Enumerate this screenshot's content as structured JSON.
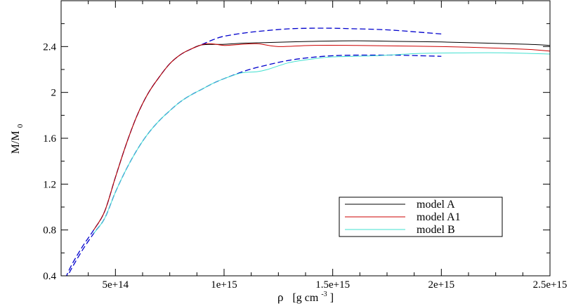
{
  "chart_data": {
    "type": "line",
    "xlabel": "ρ",
    "xlabel_unit": "[g cm",
    "xlabel_unit_exp": "-3",
    "xlabel_unit_close": "]",
    "ylabel": "M/M",
    "ylabel_sub": "0",
    "xlim": [
      250000000000000,
      2500000000000000
    ],
    "ylim": [
      0.4,
      2.8
    ],
    "x_ticks": [
      {
        "value": 500000000000000,
        "label": "5e+14"
      },
      {
        "value": 1000000000000000,
        "label": "1e+15"
      },
      {
        "value": 1500000000000000,
        "label": "1.5e+15"
      },
      {
        "value": 2000000000000000,
        "label": "2e+15"
      },
      {
        "value": 2500000000000000,
        "label": "2.5e+15"
      }
    ],
    "x_minor_ticks": [
      375000000000000,
      625000000000000,
      750000000000000,
      875000000000000,
      1125000000000000,
      1250000000000000,
      1375000000000000,
      1625000000000000,
      1750000000000000,
      1875000000000000,
      2125000000000000,
      2250000000000000,
      2375000000000000
    ],
    "y_ticks": [
      {
        "value": 0.4,
        "label": "0.4"
      },
      {
        "value": 0.8,
        "label": "0.8"
      },
      {
        "value": 1.2,
        "label": "1.2"
      },
      {
        "value": 1.6,
        "label": "1.6"
      },
      {
        "value": 2.0,
        "label": "2"
      },
      {
        "value": 2.4,
        "label": "2.4"
      }
    ],
    "y_minor_ticks": [
      0.6,
      1.0,
      1.4,
      1.8,
      2.2,
      2.6
    ],
    "grid": false,
    "legend_position": "bottom-right",
    "series": [
      {
        "key": "A-upper-dashed",
        "color": "#0000cc",
        "dash": "dashed",
        "width": 1.3,
        "in_legend": false,
        "points": [
          [
            270000000000000,
            0.38
          ],
          [
            300000000000000,
            0.5
          ],
          [
            350000000000000,
            0.66
          ],
          [
            400000000000000,
            0.8
          ],
          [
            450000000000000,
            0.96
          ],
          [
            500000000000000,
            1.26
          ],
          [
            550000000000000,
            1.55
          ],
          [
            600000000000000,
            1.8
          ],
          [
            650000000000000,
            1.99
          ],
          [
            700000000000000,
            2.13
          ],
          [
            750000000000000,
            2.25
          ],
          [
            800000000000000,
            2.33
          ],
          [
            850000000000000,
            2.38
          ],
          [
            900000000000000,
            2.42
          ],
          [
            950000000000000,
            2.46
          ],
          [
            1000000000000000,
            2.49
          ],
          [
            1100000000000000,
            2.52
          ],
          [
            1200000000000000,
            2.54
          ],
          [
            1300000000000000,
            2.555
          ],
          [
            1400000000000000,
            2.56
          ],
          [
            1500000000000000,
            2.56
          ],
          [
            1600000000000000,
            2.555
          ],
          [
            1700000000000000,
            2.55
          ],
          [
            1800000000000000,
            2.54
          ],
          [
            1900000000000000,
            2.525
          ],
          [
            2000000000000000,
            2.51
          ]
        ]
      },
      {
        "key": "B-lower-dashed",
        "color": "#0000cc",
        "dash": "dashed",
        "width": 1.3,
        "in_legend": false,
        "points": [
          [
            270000000000000,
            0.36
          ],
          [
            300000000000000,
            0.47
          ],
          [
            350000000000000,
            0.63
          ],
          [
            400000000000000,
            0.77
          ],
          [
            450000000000000,
            0.9
          ],
          [
            500000000000000,
            1.13
          ],
          [
            550000000000000,
            1.33
          ],
          [
            600000000000000,
            1.5
          ],
          [
            650000000000000,
            1.64
          ],
          [
            700000000000000,
            1.75
          ],
          [
            750000000000000,
            1.84
          ],
          [
            800000000000000,
            1.92
          ],
          [
            850000000000000,
            1.98
          ],
          [
            900000000000000,
            2.03
          ],
          [
            950000000000000,
            2.08
          ],
          [
            1000000000000000,
            2.12
          ],
          [
            1100000000000000,
            2.19
          ],
          [
            1200000000000000,
            2.24
          ],
          [
            1300000000000000,
            2.28
          ],
          [
            1400000000000000,
            2.305
          ],
          [
            1500000000000000,
            2.32
          ],
          [
            1600000000000000,
            2.325
          ],
          [
            1700000000000000,
            2.325
          ],
          [
            1800000000000000,
            2.325
          ],
          [
            1900000000000000,
            2.32
          ],
          [
            2000000000000000,
            2.315
          ]
        ]
      },
      {
        "key": "model-A",
        "name": "model A",
        "color": "#000000",
        "dash": "solid",
        "width": 1.0,
        "in_legend": true,
        "points": [
          [
            400000000000000,
            0.8
          ],
          [
            450000000000000,
            0.96
          ],
          [
            500000000000000,
            1.26
          ],
          [
            550000000000000,
            1.55
          ],
          [
            600000000000000,
            1.8
          ],
          [
            650000000000000,
            1.99
          ],
          [
            700000000000000,
            2.13
          ],
          [
            750000000000000,
            2.25
          ],
          [
            800000000000000,
            2.33
          ],
          [
            850000000000000,
            2.38
          ],
          [
            900000000000000,
            2.415
          ],
          [
            1000000000000000,
            2.42
          ],
          [
            1100000000000000,
            2.43
          ],
          [
            1200000000000000,
            2.435
          ],
          [
            1400000000000000,
            2.445
          ],
          [
            1600000000000000,
            2.45
          ],
          [
            1800000000000000,
            2.445
          ],
          [
            2000000000000000,
            2.44
          ],
          [
            2200000000000000,
            2.43
          ],
          [
            2400000000000000,
            2.42
          ],
          [
            2500000000000000,
            2.41
          ]
        ]
      },
      {
        "key": "model-A1",
        "name": "model A1",
        "color": "#cc0000",
        "dash": "solid",
        "width": 1.0,
        "in_legend": true,
        "points": [
          [
            400000000000000,
            0.8
          ],
          [
            450000000000000,
            0.96
          ],
          [
            500000000000000,
            1.26
          ],
          [
            550000000000000,
            1.55
          ],
          [
            600000000000000,
            1.8
          ],
          [
            650000000000000,
            1.99
          ],
          [
            700000000000000,
            2.13
          ],
          [
            750000000000000,
            2.25
          ],
          [
            800000000000000,
            2.33
          ],
          [
            850000000000000,
            2.38
          ],
          [
            920000000000000,
            2.425
          ],
          [
            1000000000000000,
            2.41
          ],
          [
            1050000000000000,
            2.415
          ],
          [
            1150000000000000,
            2.425
          ],
          [
            1250000000000000,
            2.4
          ],
          [
            1400000000000000,
            2.41
          ],
          [
            1600000000000000,
            2.41
          ],
          [
            1800000000000000,
            2.405
          ],
          [
            2000000000000000,
            2.4
          ],
          [
            2200000000000000,
            2.39
          ],
          [
            2400000000000000,
            2.375
          ],
          [
            2500000000000000,
            2.36
          ]
        ]
      },
      {
        "key": "model-B",
        "name": "model B",
        "color": "#40e0d0",
        "dash": "solid",
        "width": 1.0,
        "in_legend": true,
        "points": [
          [
            400000000000000,
            0.77
          ],
          [
            450000000000000,
            0.9
          ],
          [
            500000000000000,
            1.13
          ],
          [
            550000000000000,
            1.33
          ],
          [
            600000000000000,
            1.5
          ],
          [
            650000000000000,
            1.64
          ],
          [
            700000000000000,
            1.75
          ],
          [
            750000000000000,
            1.84
          ],
          [
            800000000000000,
            1.92
          ],
          [
            850000000000000,
            1.98
          ],
          [
            900000000000000,
            2.03
          ],
          [
            950000000000000,
            2.08
          ],
          [
            1000000000000000,
            2.12
          ],
          [
            1080000000000000,
            2.17
          ],
          [
            1150000000000000,
            2.18
          ],
          [
            1200000000000000,
            2.2
          ],
          [
            1300000000000000,
            2.26
          ],
          [
            1400000000000000,
            2.29
          ],
          [
            1500000000000000,
            2.31
          ],
          [
            1700000000000000,
            2.32
          ],
          [
            1900000000000000,
            2.34
          ],
          [
            2100000000000000,
            2.345
          ],
          [
            2300000000000000,
            2.345
          ],
          [
            2500000000000000,
            2.335
          ]
        ]
      }
    ]
  }
}
